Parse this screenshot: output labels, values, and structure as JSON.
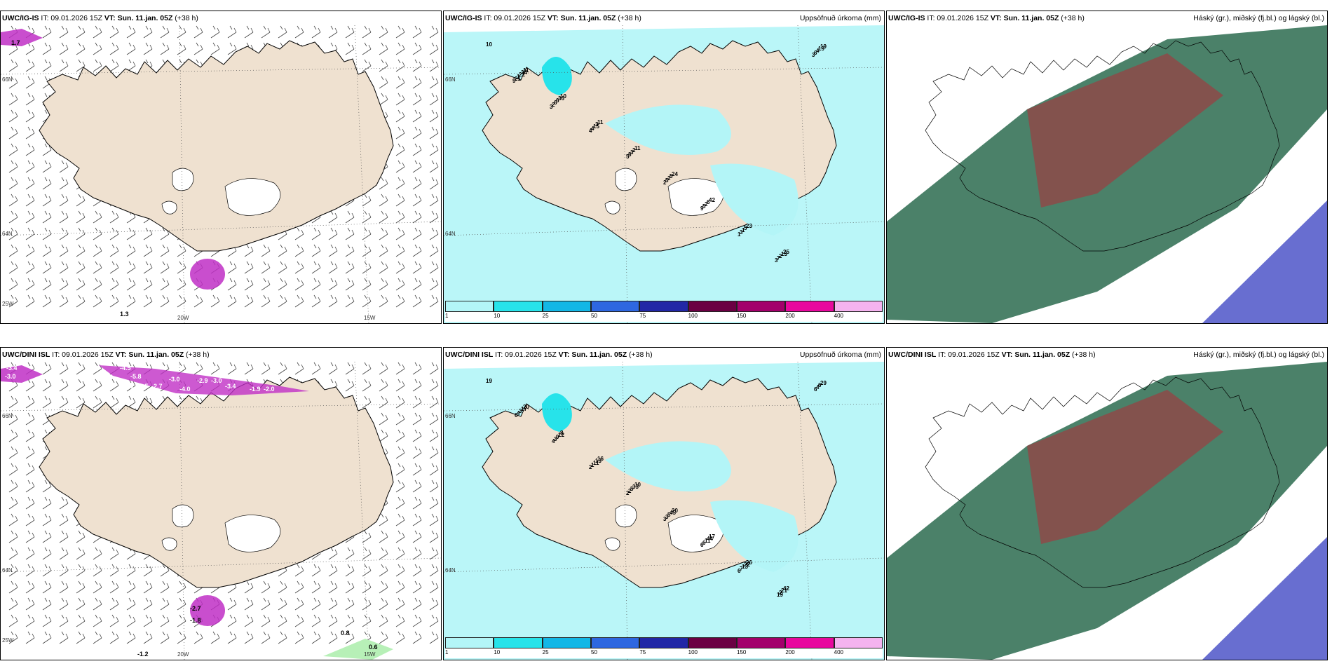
{
  "panels": [
    {
      "id": "p1",
      "title_model": "UWC/IG-IS",
      "title_it": "IT: 09.01.2026 15Z",
      "title_vt": "VT: Sun. 11.jan. 05Z",
      "title_lead": "(+38 h)",
      "title_right": "",
      "type": "wind",
      "lat_labels": [
        "66N",
        "64N"
      ],
      "lon_labels": [
        "20W",
        "15W",
        "25W"
      ],
      "values": [
        "1.7",
        "1.3"
      ]
    },
    {
      "id": "p2",
      "title_model": "UWC/IG-IS",
      "title_it": "IT: 09.01.2026 15Z",
      "title_vt": "VT: Sun. 11.jan. 05Z",
      "title_lead": "(+38 h)",
      "title_right": "Uppsöfnuð úrkoma (mm)",
      "type": "precip",
      "lat_labels": [
        "66N",
        "64N"
      ],
      "numbers": [
        "10",
        "11",
        "10",
        "11",
        "11",
        "24",
        "42",
        "23",
        "25",
        "19",
        "34",
        "36",
        "3",
        "2",
        "5",
        "6",
        "5",
        "13",
        "19",
        "22",
        "6",
        "15",
        "3",
        "2",
        "2",
        "1",
        "2",
        "4",
        "1",
        "6",
        "4",
        "8",
        "5",
        "5",
        "3",
        "7",
        "6",
        "21",
        "2",
        "4",
        "5",
        "2",
        "9",
        "1",
        "3",
        "3",
        "9",
        "3"
      ]
    },
    {
      "id": "p3",
      "title_model": "UWC/IG-IS",
      "title_it": "IT: 09.01.2026 15Z",
      "title_vt": "VT: Sun. 11.jan. 05Z",
      "title_lead": "(+38 h)",
      "title_right": "Háský (gr.), miðský (fj.bl.) og lágský (bl.)",
      "type": "cloud"
    },
    {
      "id": "p4",
      "title_model": "UWC/DINI ISL",
      "title_it": "IT: 09.01.2026 15Z",
      "title_vt": "VT: Sun. 11.jan. 05Z",
      "title_lead": "(+38 h)",
      "title_right": "",
      "type": "wind",
      "lat_labels": [
        "66N",
        "64N"
      ],
      "lon_labels": [
        "20W",
        "15W",
        "25W"
      ],
      "values": [
        "-3.4",
        "-3.0",
        "-4.5",
        "-5.8",
        "-3.1",
        "-3.5",
        "-2.7",
        "-3.0",
        "-4.0",
        "-2.9",
        "-3.0",
        "-3.4",
        "-1.9",
        "-2.0",
        "-2.7",
        "-1.8",
        "-1.2",
        "0.8",
        "0.6"
      ]
    },
    {
      "id": "p5",
      "title_model": "UWC/DINI ISL",
      "title_it": "IT: 09.01.2026 15Z",
      "title_vt": "VT: Sun. 11.jan. 05Z",
      "title_lead": "(+38 h)",
      "title_right": "Uppsöfnuð úrkoma (mm)",
      "type": "precip",
      "lat_labels": [
        "66N",
        "64N"
      ],
      "numbers": [
        "19",
        "20",
        "8",
        "16",
        "10",
        "20",
        "17",
        "26",
        "42",
        "29",
        "17",
        "12",
        "13",
        "33",
        "45",
        "44",
        "22",
        "21",
        "6",
        "3",
        "9",
        "11",
        "5",
        "5",
        "11",
        "13",
        "2",
        "4",
        "4",
        "3",
        "1",
        "2",
        "3",
        "6",
        "7",
        "19",
        "6",
        "6",
        "4",
        "2",
        "2",
        "3",
        "6",
        "6"
      ]
    },
    {
      "id": "p6",
      "title_model": "UWC/DINI ISL",
      "title_it": "IT: 09.01.2026 15Z",
      "title_vt": "VT: Sun. 11.jan. 05Z",
      "title_lead": "(+38 h)",
      "title_right": "Háský (gr.), miðský (fj.bl.) og lágský (bl.)",
      "type": "cloud"
    }
  ],
  "colorbar": {
    "ticks": [
      "1",
      "10",
      "25",
      "50",
      "75",
      "100",
      "150",
      "200",
      "400"
    ],
    "colors": [
      "#b3f5f7",
      "#27e3ea",
      "#13b7e6",
      "#2e67e0",
      "#2227a6",
      "#6b0043",
      "#a3006b",
      "#e8089e",
      "#f4b3ef"
    ]
  },
  "colors": {
    "land": "#efe1d0",
    "sea": "#ffffff",
    "precip_light": "#b3f5f7",
    "precip_mid": "#27e3ea",
    "magenta": "#c02fc6",
    "cloud_green": "#2c6b4f",
    "cloud_red": "#a8343a",
    "cloud_blue": "#4e55c8"
  }
}
